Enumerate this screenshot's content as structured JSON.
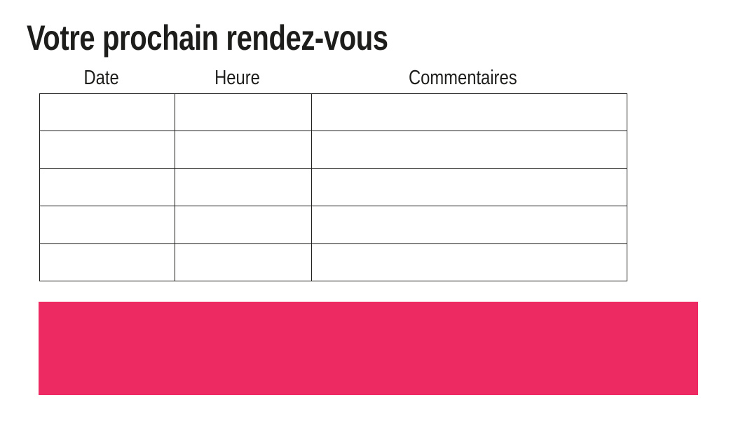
{
  "page": {
    "title": "Votre prochain rendez-vous",
    "background_color": "#ffffff",
    "text_color": "#1d1d1b"
  },
  "table": {
    "headers": [
      "Date",
      "Heure",
      "Commentaires"
    ],
    "rows": [
      [
        "",
        "",
        ""
      ],
      [
        "",
        "",
        ""
      ],
      [
        "",
        "",
        ""
      ],
      [
        "",
        "",
        ""
      ],
      [
        "",
        "",
        ""
      ]
    ],
    "border_color": "#1d1d1b"
  },
  "banner": {
    "color": "#ee2a63"
  }
}
